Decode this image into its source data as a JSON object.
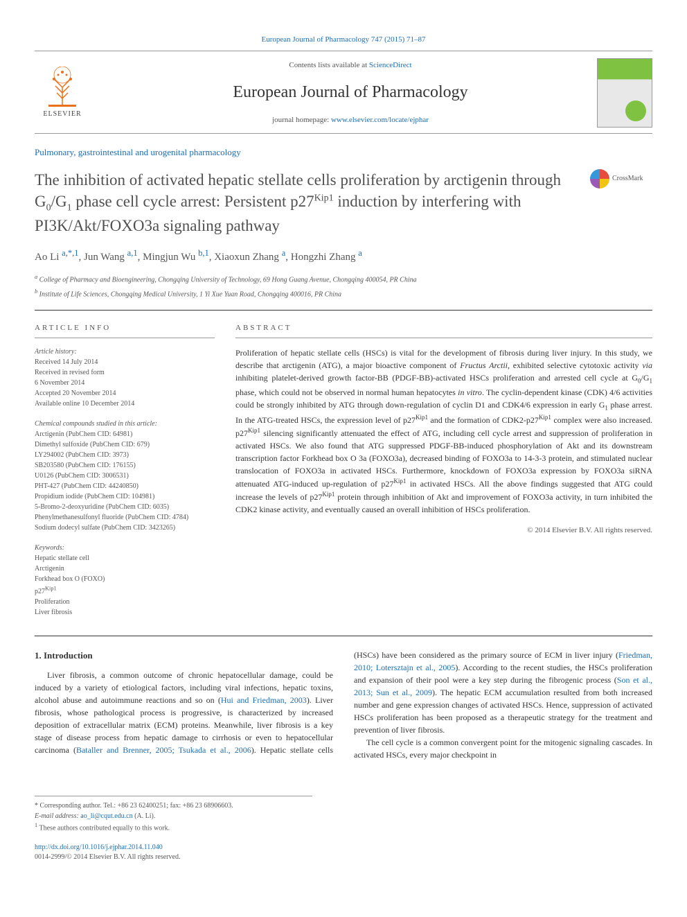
{
  "top_link": {
    "journal": "European Journal of Pharmacology 747 (2015) 71–87",
    "href": "#"
  },
  "header": {
    "contents_prefix": "Contents lists available at ",
    "contents_link": "ScienceDirect",
    "journal_name": "European Journal of Pharmacology",
    "homepage_prefix": "journal homepage: ",
    "homepage_url": "www.elsevier.com/locate/ejphar",
    "publisher": "ELSEVIER"
  },
  "section_tag": "Pulmonary, gastrointestinal and urogenital pharmacology",
  "title_html": "The inhibition of activated hepatic stellate cells proliferation by arctigenin through G<sub>0</sub>/G<sub>1</sub> phase cell cycle arrest: Persistent p27<sup>Kip1</sup> induction by interfering with PI3K/Akt/FOXO3a signaling pathway",
  "crossmark_label": "CrossMark",
  "authors": [
    {
      "name": "Ao Li",
      "marks_html": "<a href=\"#\">a</a>,<a href=\"#\">*</a>,<a href=\"#\">1</a>"
    },
    {
      "name": "Jun Wang",
      "marks_html": "<a href=\"#\">a,1</a>"
    },
    {
      "name": "Mingjun Wu",
      "marks_html": "<a href=\"#\">b,1</a>"
    },
    {
      "name": "Xiaoxun Zhang",
      "marks_html": "<a href=\"#\">a</a>"
    },
    {
      "name": "Hongzhi Zhang",
      "marks_html": "<a href=\"#\">a</a>"
    }
  ],
  "affiliations": [
    {
      "mark": "a",
      "text": "College of Pharmacy and Bioengineering, Chongqing University of Technology, 69 Hong Guang Avenue, Chongqing 400054, PR China"
    },
    {
      "mark": "b",
      "text": "Institute of Life Sciences, Chongqing Medical University, 1 Yi Xue Yuan Road, Chongqing 400016, PR China"
    }
  ],
  "article_info_label": "ARTICLE INFO",
  "abstract_label": "ABSTRACT",
  "history": {
    "label": "Article history:",
    "lines": [
      "Received 14 July 2014",
      "Received in revised form",
      "6 November 2014",
      "Accepted 20 November 2014",
      "Available online 10 December 2014"
    ]
  },
  "compounds": {
    "label": "Chemical compounds studied in this article:",
    "lines": [
      "Arctigenin (PubChem CID: 64981)",
      "Dimethyl sulfoxide (PubChem CID: 679)",
      "LY294002 (PubChem CID: 3973)",
      "SB203580 (PubChem CID: 176155)",
      "U0126 (PubChem CID: 3006531)",
      "PHT-427 (PubChem CID: 44240850)",
      "Propidium iodide (PubChem CID: 104981)",
      "5-Bromo-2-deoxyuridine (PubChem CID: 6035)",
      "Phenylmethanesulfonyl fluoride (PubChem CID: 4784)",
      "Sodium dodecyl sulfate (PubChem CID: 3423265)"
    ]
  },
  "keywords": {
    "label": "Keywords:",
    "lines_html": [
      "Hepatic stellate cell",
      "Arctigenin",
      "Forkhead box O (FOXO)",
      "p27<sup>Kip1</sup>",
      "Proliferation",
      "Liver fibrosis"
    ]
  },
  "abstract_html": "Proliferation of hepatic stellate cells (HSCs) is vital for the development of fibrosis during liver injury. In this study, we describe that arctigenin (ATG), a major bioactive component of <em>Fructus Arctii</em>, exhibited selective cytotoxic activity <em>via</em> inhibiting platelet-derived growth factor-BB (PDGF-BB)-activated HSCs proliferation and arrested cell cycle at G<sub>0</sub>/G<sub>1</sub> phase, which could not be observed in normal human hepatocytes <em>in vitro</em>. The cyclin-dependent kinase (CDK) 4/6 activities could be strongly inhibited by ATG through down-regulation of cyclin D1 and CDK4/6 expression in early G<sub>1</sub> phase arrest. In the ATG-treated HSCs, the expression level of p27<sup>Kip1</sup> and the formation of CDK2-p27<sup>Kip1</sup> complex were also increased. p27<sup>Kip1</sup> silencing significantly attenuated the effect of ATG, including cell cycle arrest and suppression of proliferation in activated HSCs. We also found that ATG suppressed PDGF-BB-induced phosphorylation of Akt and its downstream transcription factor Forkhead box O 3a (FOXO3a), decreased binding of FOXO3a to 14-3-3 protein, and stimulated nuclear translocation of FOXO3a in activated HSCs. Furthermore, knockdown of FOXO3a expression by FOXO3a siRNA attenuated ATG-induced up-regulation of p27<sup>Kip1</sup> in activated HSCs. All the above findings suggested that ATG could increase the levels of p27<sup>Kip1</sup> protein through inhibition of Akt and improvement of FOXO3a activity, in turn inhibited the CDK2 kinase activity, and eventually caused an overall inhibition of HSCs proliferation.",
  "copyright": "© 2014 Elsevier B.V. All rights reserved.",
  "intro": {
    "heading": "1.  Introduction",
    "p1_html": "Liver fibrosis, a common outcome of chronic hepatocellular damage, could be induced by a variety of etiological factors, including viral infections, hepatic toxins, alcohol abuse and autoimmune reactions and so on (<a href=\"#\">Hui and Friedman, 2003</a>). Liver fibrosis, whose pathological process is progressive, is characterized by increased deposition of extracellular matrix (ECM) proteins. Meanwhile, liver fibrosis is a key stage of disease process from hepatic damage to cirrhosis or even to hepatocellular carcinoma (<a href=\"#\">Bataller and Brenner, 2005; Tsukada et al., 2006</a>). Hepatic stellate cells (HSCs) have been considered as the primary source of ECM in liver injury (<a href=\"#\">Friedman, 2010; Lotersztajn et al., 2005</a>). According to the recent studies, the HSCs proliferation and expansion of their pool were a key step during the fibrogenic process (<a href=\"#\">Son et al., 2013; Sun et al., 2009</a>). The hepatic ECM accumulation resulted from both increased number and gene expression changes of activated HSCs. Hence, suppression of activated HSCs proliferation has been proposed as a therapeutic strategy for the treatment and prevention of liver fibrosis.",
    "p2_html": "The cell cycle is a common convergent point for the mitogenic signaling cascades. In activated HSCs, every major checkpoint in"
  },
  "footnotes": {
    "corr": "* Corresponding author. Tel.: +86 23 62400251; fax: +86 23 68906603.",
    "email_label": "E-mail address:",
    "email": "ao_li@cqut.edu.cn",
    "email_who": "(A. Li).",
    "equal": "These authors contributed equally to this work."
  },
  "doi": {
    "url": "http://dx.doi.org/10.1016/j.ejphar.2014.11.040"
  },
  "issn": "0014-2999/© 2014 Elsevier B.V. All rights reserved."
}
